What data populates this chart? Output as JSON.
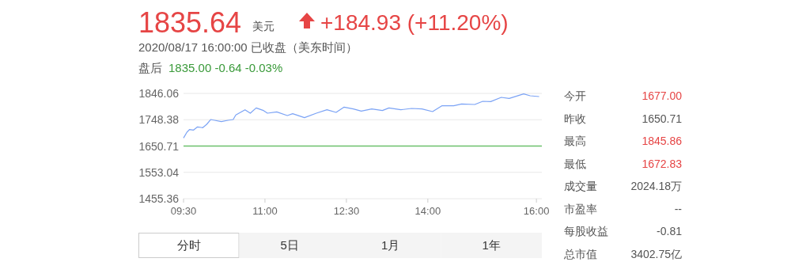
{
  "chart_data": [
    {
      "type": "line",
      "title": "1835.64",
      "subtitle": "+184.93 (+11.20%)",
      "annotations": [
        "美元",
        "2020/08/17 16:00:00 已收盘（美东时间）",
        "盘后",
        "1835.00  -0.64  -0.03%",
        "分时",
        "5日",
        "1月",
        "1年"
      ],
      "series": [
        {
          "color": "#7ba3f5",
          "x": [
            9.5,
            9.563,
            9.61,
            9.685,
            9.758,
            9.855,
            9.928,
            10.0,
            10.074,
            10.196,
            10.317,
            10.415,
            10.463,
            10.633,
            10.73,
            10.838,
            10.974,
            11.047,
            11.217,
            11.412,
            11.51,
            11.728,
            11.947,
            12.142,
            12.31,
            12.458,
            12.628,
            12.774,
            12.968,
            13.163,
            13.284,
            13.503,
            13.7,
            13.892,
            14.087,
            14.257,
            14.476,
            14.622,
            14.865,
            15.011,
            15.157,
            15.352,
            15.498,
            15.765,
            15.886,
            16.05
          ],
          "values": [
            1680.6,
            1702.1,
            1711.9,
            1710,
            1721.7,
            1718.8,
            1731.5,
            1749.1,
            1746.2,
            1741.3,
            1746.2,
            1749.1,
            1765.8,
            1785.4,
            1772.6,
            1792.2,
            1782.4,
            1772.6,
            1777.5,
            1763.8,
            1770.7,
            1756,
            1772.6,
            1785.4,
            1775.6,
            1795.1,
            1788.3,
            1780.5,
            1788.3,
            1782.4,
            1792.2,
            1785.4,
            1790.3,
            1788.3,
            1778.5,
            1800,
            1800,
            1806.9,
            1804.9,
            1816.7,
            1815.7,
            1831.4,
            1827.5,
            1844.1,
            1837.2,
            1834.3
          ]
        }
      ],
      "xlim": [
        9.5,
        16.1
      ],
      "ylim": [
        1455.36,
        1846.06
      ],
      "xticks": [
        {
          "value": 9.5,
          "label": "09:30"
        },
        {
          "value": 11,
          "label": "11:00"
        },
        {
          "value": 12.5,
          "label": "12:30"
        },
        {
          "value": 14,
          "label": "14:00"
        },
        {
          "value": 16,
          "label": "16:00"
        }
      ],
      "yticks": [
        1455.36,
        1553.04,
        1650.71,
        1748.38,
        1846.06
      ],
      "grid": "y",
      "ref_lines": [
        {
          "axis": "y",
          "value": 1650.71,
          "color": "#6cc06c"
        }
      ]
    },
    {
      "type": "other",
      "categories": [
        "今开",
        "昨收",
        "最高",
        "最低",
        "成交量",
        "市盈率",
        "每股收益",
        "总市值"
      ],
      "value_labels": [
        "1677.00",
        "1650.71",
        "1845.86",
        "1672.83",
        "2024.18万",
        "--",
        "-0.81",
        "3402.75亿"
      ],
      "colors": [
        "#e64545",
        "#555555",
        "#e64545",
        "#e64545",
        "#555555",
        "#555555",
        "#555555",
        "#555555"
      ]
    }
  ]
}
